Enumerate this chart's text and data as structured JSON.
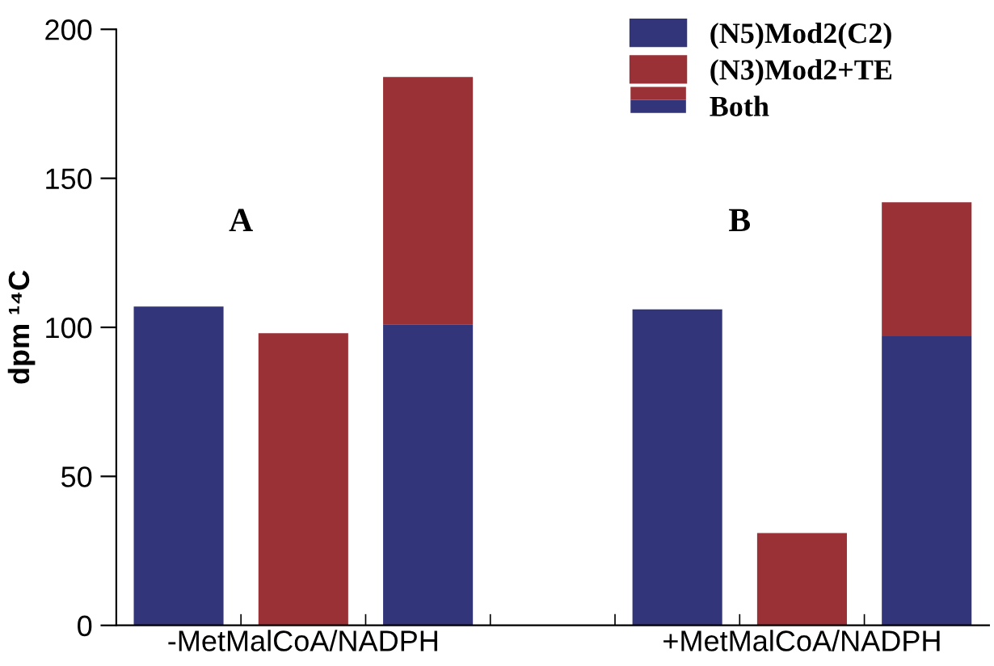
{
  "chart_data": {
    "type": "bar",
    "stacked": true,
    "ylabel": "dpm ¹⁴C",
    "categories": [
      null,
      "-MetMalCoA/NADPH",
      null,
      null,
      null,
      "+MetMalCoA/NADPH",
      null
    ],
    "series": [
      {
        "name": "(N5)Mod2(C2)",
        "color": "#33357a",
        "values": [
          107,
          null,
          101,
          null,
          106,
          null,
          97
        ]
      },
      {
        "name": "(N3)Mod2+TE",
        "color": "#993136",
        "values": [
          null,
          98,
          83,
          null,
          null,
          31,
          45
        ]
      }
    ],
    "ylim": [
      0,
      200
    ],
    "yticks": [
      0,
      50,
      100,
      150,
      200
    ],
    "grid": false,
    "legend": "top right",
    "annotations": [
      "A",
      "B",
      "Both"
    ]
  }
}
